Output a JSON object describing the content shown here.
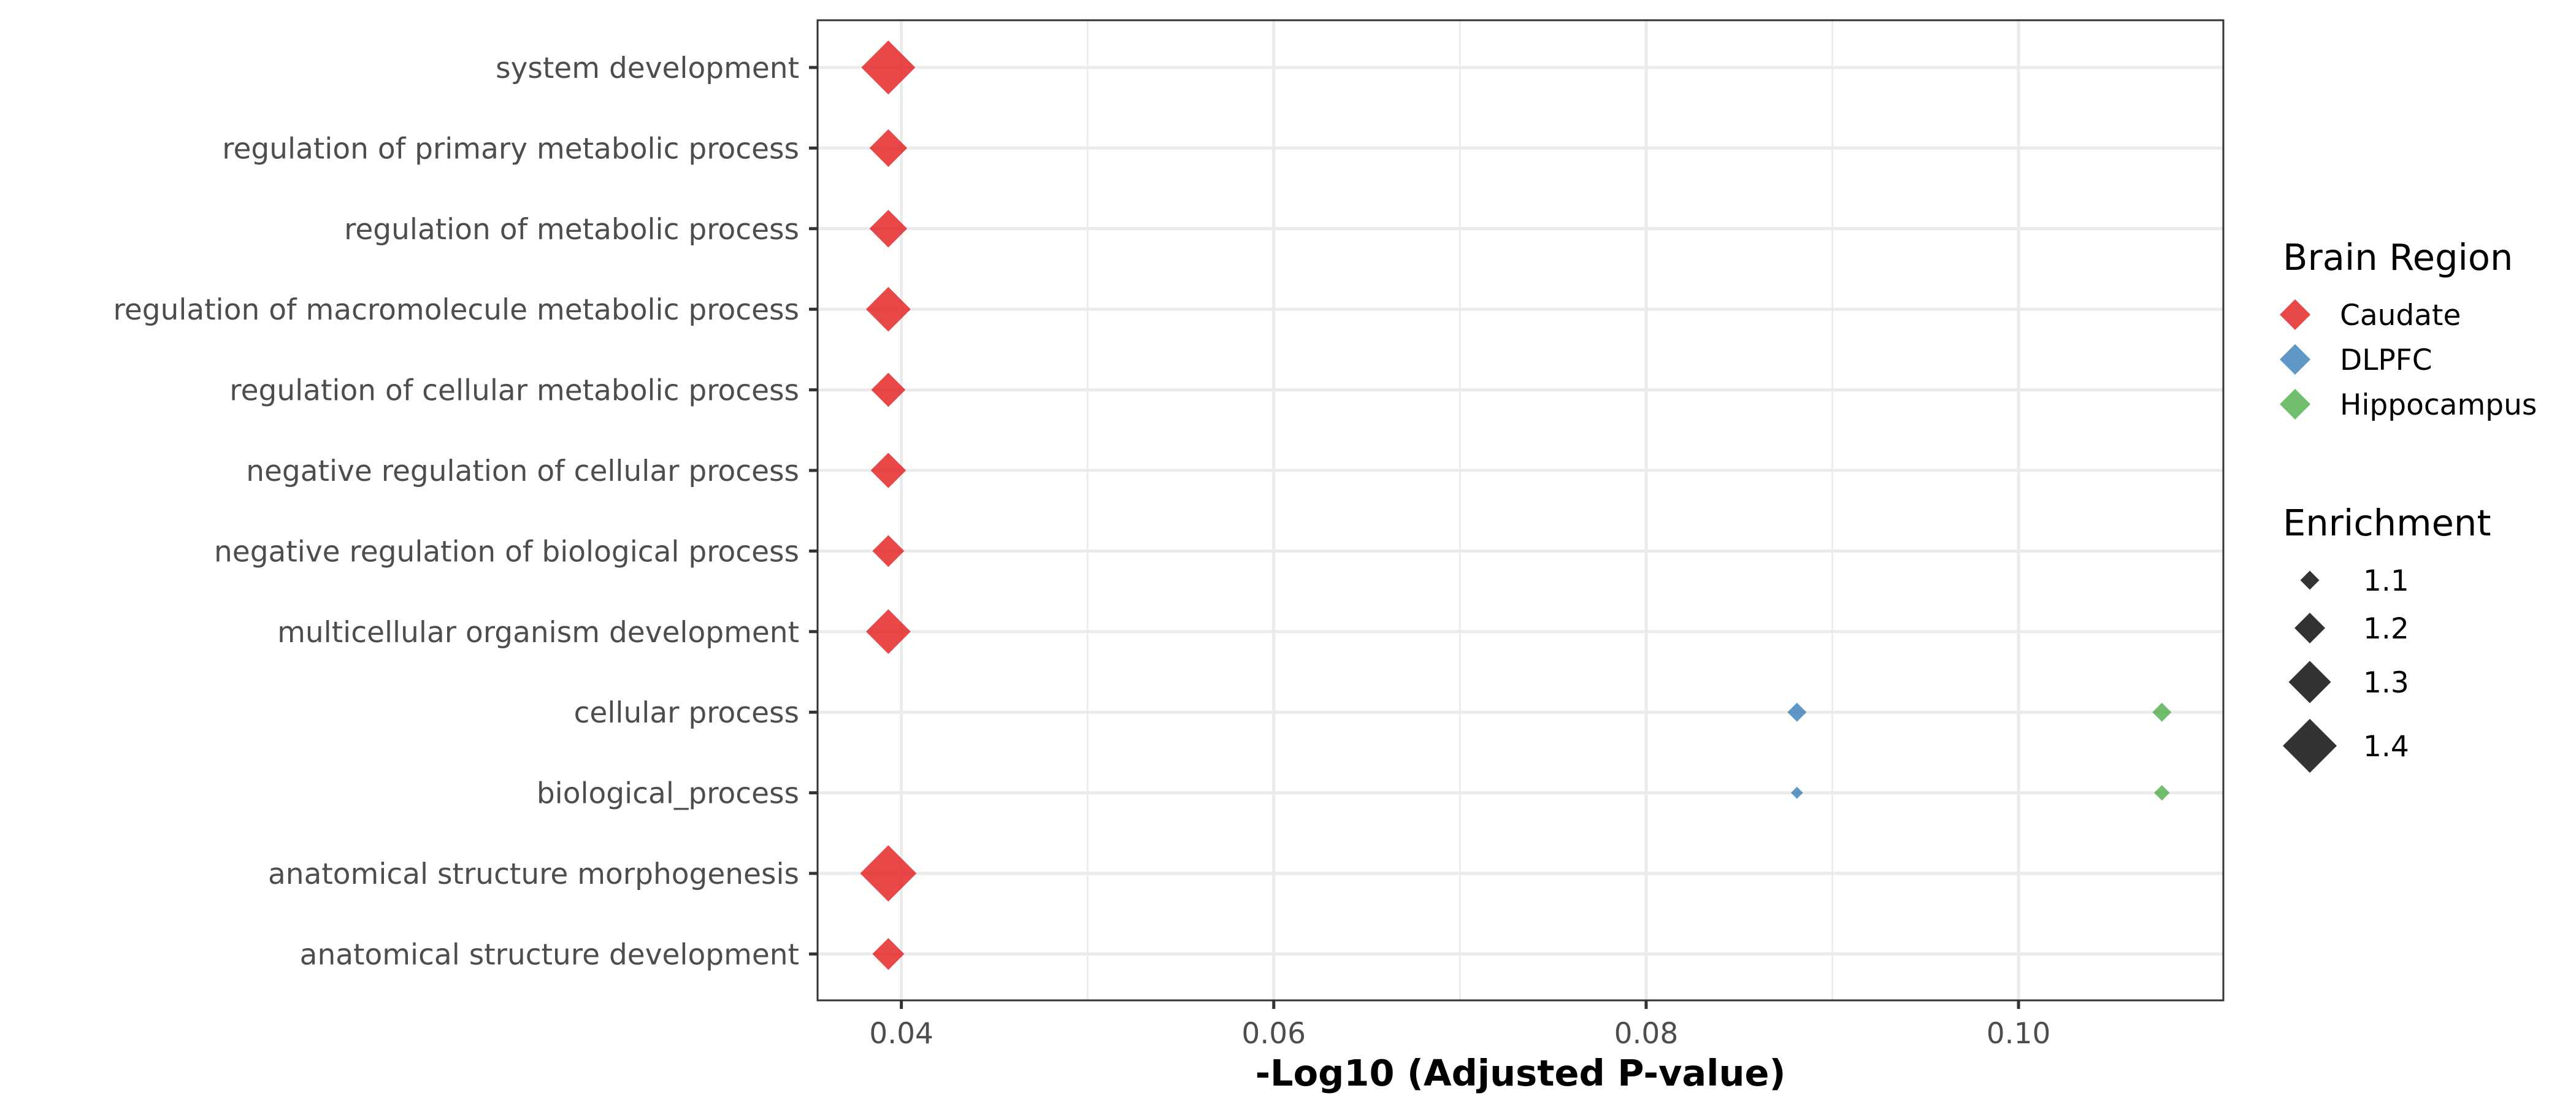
{
  "chart_data": {
    "type": "scatter",
    "marker": "diamond",
    "xlabel": "-Log10 (Adjusted P-value)",
    "ylabel": "",
    "xlim": [
      0.0355,
      0.111
    ],
    "x_ticks": [
      0.04,
      0.06,
      0.08,
      0.1
    ],
    "x_tick_labels": [
      "0.04",
      "0.06",
      "0.08",
      "0.10"
    ],
    "grid": true,
    "categories": [
      "system development",
      "regulation of primary metabolic process",
      "regulation of metabolic process",
      "regulation of macromolecule metabolic process",
      "regulation of cellular metabolic process",
      "negative regulation of cellular process",
      "negative regulation of biological process",
      "multicellular organism development",
      "cellular process",
      "biological_process",
      "anatomical structure morphogenesis",
      "anatomical structure development"
    ],
    "series": [
      {
        "name": "Caudate",
        "color": "#e41a1c",
        "points": [
          {
            "category": "system development",
            "x": 0.0393,
            "enrichment": 1.4
          },
          {
            "category": "regulation of primary metabolic process",
            "x": 0.0393,
            "enrichment": 1.26
          },
          {
            "category": "regulation of metabolic process",
            "x": 0.0393,
            "enrichment": 1.26
          },
          {
            "category": "regulation of macromolecule metabolic process",
            "x": 0.0393,
            "enrichment": 1.32
          },
          {
            "category": "regulation of cellular metabolic process",
            "x": 0.0393,
            "enrichment": 1.23
          },
          {
            "category": "negative regulation of cellular process",
            "x": 0.0393,
            "enrichment": 1.24
          },
          {
            "category": "negative regulation of biological process",
            "x": 0.0393,
            "enrichment": 1.21
          },
          {
            "category": "multicellular organism development",
            "x": 0.0393,
            "enrichment": 1.32
          },
          {
            "category": "anatomical structure morphogenesis",
            "x": 0.0393,
            "enrichment": 1.42
          },
          {
            "category": "anatomical structure development",
            "x": 0.0393,
            "enrichment": 1.21
          }
        ]
      },
      {
        "name": "DLPFC",
        "color": "#377eb8",
        "points": [
          {
            "category": "cellular process",
            "x": 0.0881,
            "enrichment": 1.1
          },
          {
            "category": "biological_process",
            "x": 0.0881,
            "enrichment": 1.04
          }
        ]
      },
      {
        "name": "Hippocampus",
        "color": "#4daf4a",
        "points": [
          {
            "category": "cellular process",
            "x": 0.1077,
            "enrichment": 1.1
          },
          {
            "category": "biological_process",
            "x": 0.1077,
            "enrichment": 1.07
          }
        ]
      }
    ],
    "legends": {
      "color_title": "Brain Region",
      "color_items": [
        {
          "label": "Caudate",
          "color": "#e41a1c"
        },
        {
          "label": "DLPFC",
          "color": "#377eb8"
        },
        {
          "label": "Hippocampus",
          "color": "#4daf4a"
        }
      ],
      "size_title": "Enrichment",
      "size_items": [
        {
          "label": "1.1",
          "value": 1.1
        },
        {
          "label": "1.2",
          "value": 1.2
        },
        {
          "label": "1.3",
          "value": 1.3
        },
        {
          "label": "1.4",
          "value": 1.4
        }
      ],
      "placement": "right"
    }
  }
}
